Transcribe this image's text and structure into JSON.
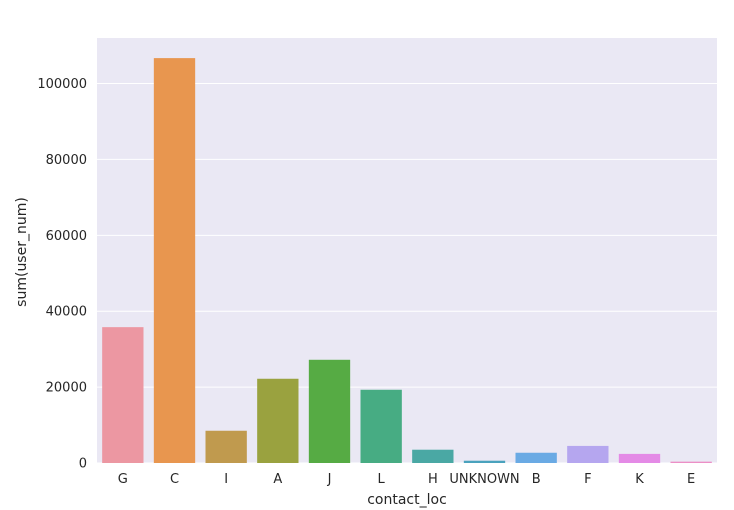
{
  "chart_data": {
    "type": "bar",
    "title": "",
    "xlabel": "contact_loc",
    "ylabel": "sum(user_num)",
    "categories": [
      "G",
      "C",
      "I",
      "A",
      "J",
      "L",
      "H",
      "UNKNOWN",
      "B",
      "F",
      "K",
      "E"
    ],
    "values": [
      35800,
      106700,
      8500,
      22200,
      27200,
      19300,
      3500,
      600,
      2700,
      4500,
      2400,
      350
    ],
    "ylim": [
      0,
      112000
    ],
    "yticks": [
      0,
      20000,
      40000,
      60000,
      80000,
      100000
    ],
    "grid": true,
    "background": "#eae8f4",
    "colors": [
      "#ec97a2",
      "#e8964f",
      "#c09a4e",
      "#9aa23f",
      "#56ab44",
      "#47ac83",
      "#4aa8a4",
      "#4aa2bd",
      "#6aaae4",
      "#b5a6ef",
      "#e48ae6",
      "#ec8fc6"
    ]
  }
}
